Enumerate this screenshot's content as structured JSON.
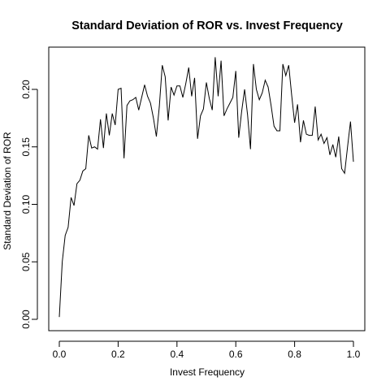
{
  "chart_data": {
    "type": "line",
    "title": "Standard Deviation of ROR vs. Invest Frequency",
    "xlabel": "Invest Frequency",
    "ylabel": "Standard Deviation of ROR",
    "xlim": [
      0.0,
      1.0
    ],
    "ylim": [
      0.0,
      0.22
    ],
    "x_ticks": [
      0.0,
      0.2,
      0.4,
      0.6,
      0.8,
      1.0
    ],
    "x_tick_labels": [
      "0.0",
      "0.2",
      "0.4",
      "0.6",
      "0.8",
      "1.0"
    ],
    "y_ticks": [
      0.0,
      0.05,
      0.1,
      0.15,
      0.2
    ],
    "y_tick_labels": [
      "0.00",
      "0.05",
      "0.10",
      "0.15",
      "0.20"
    ],
    "grid": false,
    "legend": "none",
    "line_color": "#000000",
    "series": [
      {
        "x": [
          0.0,
          0.01,
          0.02,
          0.03,
          0.04,
          0.05,
          0.06,
          0.07,
          0.08,
          0.09,
          0.1,
          0.11,
          0.12,
          0.13,
          0.14,
          0.15,
          0.16,
          0.17,
          0.18,
          0.19,
          0.2,
          0.21,
          0.22,
          0.23,
          0.24,
          0.25,
          0.26,
          0.27,
          0.28,
          0.29,
          0.3,
          0.31,
          0.32,
          0.33,
          0.34,
          0.35,
          0.36,
          0.37,
          0.38,
          0.39,
          0.4,
          0.41,
          0.42,
          0.43,
          0.44,
          0.45,
          0.46,
          0.47,
          0.48,
          0.49,
          0.5,
          0.51,
          0.52,
          0.53,
          0.54,
          0.55,
          0.56,
          0.57,
          0.58,
          0.59,
          0.6,
          0.61,
          0.62,
          0.63,
          0.64,
          0.65,
          0.66,
          0.67,
          0.68,
          0.69,
          0.7,
          0.71,
          0.72,
          0.73,
          0.74,
          0.75,
          0.76,
          0.77,
          0.78,
          0.79,
          0.8,
          0.81,
          0.82,
          0.83,
          0.84,
          0.85,
          0.86,
          0.87,
          0.88,
          0.89,
          0.9,
          0.91,
          0.92,
          0.93,
          0.94,
          0.95,
          0.96,
          0.97,
          0.98,
          0.99,
          1.0
        ],
        "values": [
          0.002,
          0.05,
          0.073,
          0.08,
          0.106,
          0.099,
          0.118,
          0.121,
          0.129,
          0.131,
          0.16,
          0.149,
          0.15,
          0.148,
          0.174,
          0.149,
          0.179,
          0.16,
          0.179,
          0.169,
          0.2,
          0.201,
          0.14,
          0.186,
          0.19,
          0.191,
          0.193,
          0.182,
          0.193,
          0.204,
          0.194,
          0.188,
          0.175,
          0.159,
          0.185,
          0.221,
          0.211,
          0.173,
          0.202,
          0.195,
          0.203,
          0.203,
          0.193,
          0.205,
          0.219,
          0.194,
          0.21,
          0.157,
          0.177,
          0.183,
          0.206,
          0.192,
          0.182,
          0.228,
          0.194,
          0.225,
          0.177,
          0.183,
          0.188,
          0.193,
          0.216,
          0.158,
          0.181,
          0.2,
          0.178,
          0.148,
          0.222,
          0.2,
          0.191,
          0.197,
          0.208,
          0.202,
          0.186,
          0.168,
          0.164,
          0.164,
          0.222,
          0.212,
          0.221,
          0.195,
          0.171,
          0.187,
          0.154,
          0.173,
          0.161,
          0.16,
          0.16,
          0.185,
          0.156,
          0.161,
          0.153,
          0.158,
          0.143,
          0.152,
          0.141,
          0.159,
          0.131,
          0.127,
          0.15,
          0.172,
          0.137
        ]
      }
    ]
  }
}
